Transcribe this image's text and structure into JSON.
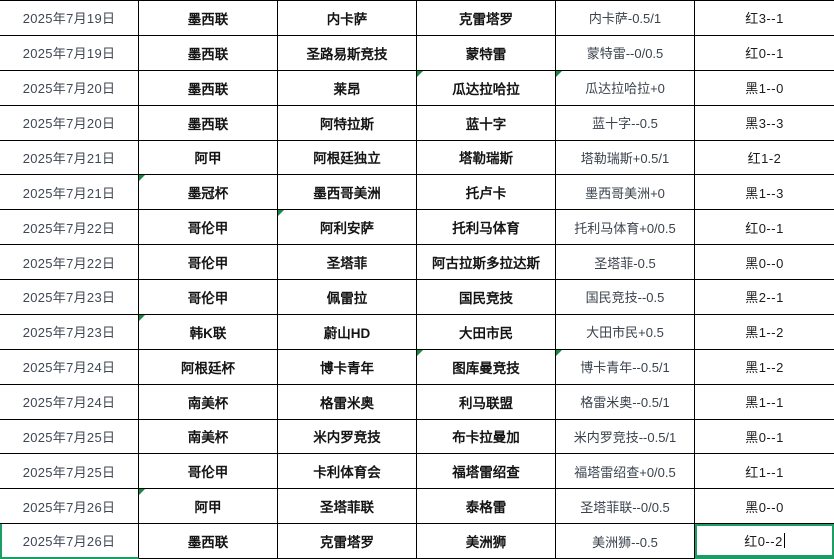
{
  "table": {
    "rows": [
      {
        "date": "2025年7月19日",
        "league": "墨西联",
        "home_team": "内卡萨",
        "away_team": "克雷塔罗",
        "handicap": "内卡萨-0.5/1",
        "result": "红3--1",
        "triangles": []
      },
      {
        "date": "2025年7月19日",
        "league": "墨西联",
        "home_team": "圣路易斯竞技",
        "away_team": "蒙特雷",
        "handicap": "蒙特雷--0/0.5",
        "result": "红0--1",
        "triangles": []
      },
      {
        "date": "2025年7月20日",
        "league": "墨西联",
        "home_team": "莱昂",
        "away_team": "瓜达拉哈拉",
        "handicap": "瓜达拉哈拉+0",
        "result": "黑1--0",
        "triangles": [
          "away_team",
          "handicap"
        ]
      },
      {
        "date": "2025年7月20日",
        "league": "墨西联",
        "home_team": "阿特拉斯",
        "away_team": "蓝十字",
        "handicap": "蓝十字--0.5",
        "result": "黑3--3",
        "triangles": []
      },
      {
        "date": "2025年7月21日",
        "league": "阿甲",
        "home_team": "阿根廷独立",
        "away_team": "塔勒瑞斯",
        "handicap": "塔勒瑞斯+0.5/1",
        "result": "红1-2",
        "triangles": []
      },
      {
        "date": "2025年7月21日",
        "league": "墨冠杯",
        "home_team": "墨西哥美洲",
        "away_team": "托卢卡",
        "handicap": "墨西哥美洲+0",
        "result": "黑1--3",
        "triangles": [
          "league"
        ]
      },
      {
        "date": "2025年7月22日",
        "league": "哥伦甲",
        "home_team": "阿利安萨",
        "away_team": "托利马体育",
        "handicap": "托利马体育+0/0.5",
        "result": "红0--1",
        "triangles": [
          "home_team"
        ]
      },
      {
        "date": "2025年7月22日",
        "league": "哥伦甲",
        "home_team": "圣塔菲",
        "away_team": "阿古拉斯多拉达斯",
        "handicap": "圣塔菲-0.5",
        "result": "黑0--0",
        "triangles": []
      },
      {
        "date": "2025年7月23日",
        "league": "哥伦甲",
        "home_team": "佩雷拉",
        "away_team": "国民竞技",
        "handicap": "国民竞技--0.5",
        "result": "黑2--1",
        "triangles": []
      },
      {
        "date": "2025年7月23日",
        "league": "韩K联",
        "home_team": "蔚山HD",
        "away_team": "大田市民",
        "handicap": "大田市民+0.5",
        "result": "黑1--2",
        "triangles": [
          "league"
        ]
      },
      {
        "date": "2025年7月24日",
        "league": "阿根廷杯",
        "home_team": "博卡青年",
        "away_team": "图库曼竞技",
        "handicap": "博卡青年--0.5/1",
        "result": "黑1--2",
        "triangles": [
          "away_team",
          "handicap"
        ]
      },
      {
        "date": "2025年7月24日",
        "league": "南美杯",
        "home_team": "格雷米奥",
        "away_team": "利马联盟",
        "handicap": "格雷米奥--0.5/1",
        "result": "黑1--1",
        "triangles": []
      },
      {
        "date": "2025年7月25日",
        "league": "南美杯",
        "home_team": "米内罗竞技",
        "away_team": "布卡拉曼加",
        "handicap": "米内罗竞技--0.5/1",
        "result": "黑0--1",
        "triangles": []
      },
      {
        "date": "2025年7月25日",
        "league": "哥伦甲",
        "home_team": "卡利体育会",
        "away_team": "福塔雷绍查",
        "handicap": "福塔雷绍查+0/0.5",
        "result": "红1--1",
        "triangles": []
      },
      {
        "date": "2025年7月26日",
        "league": "阿甲",
        "home_team": "圣塔菲联",
        "away_team": "泰格雷",
        "handicap": "圣塔菲联--0/0.5",
        "result": "黑0--0",
        "triangles": [
          "league"
        ]
      },
      {
        "date": "2025年7月26日",
        "league": "墨西联",
        "home_team": "克雷塔罗",
        "away_team": "美洲狮",
        "handicap": "美洲狮--0.5",
        "result": "红0--2",
        "triangles": []
      }
    ]
  },
  "selection": {
    "row_index": 15,
    "active_column": "result",
    "row_edge_column": "date",
    "active_cell_text": "红0--2",
    "has_text_cursor": true
  },
  "colors": {
    "grid_border": "#000000",
    "selection_green": "#1a9e64",
    "triangle_green": "#168a42",
    "date_text": "#3f4753",
    "team_text": "#141414",
    "handicap_text": "#3a424c",
    "result_text": "#1c1c1c",
    "background": "#ffffff"
  }
}
